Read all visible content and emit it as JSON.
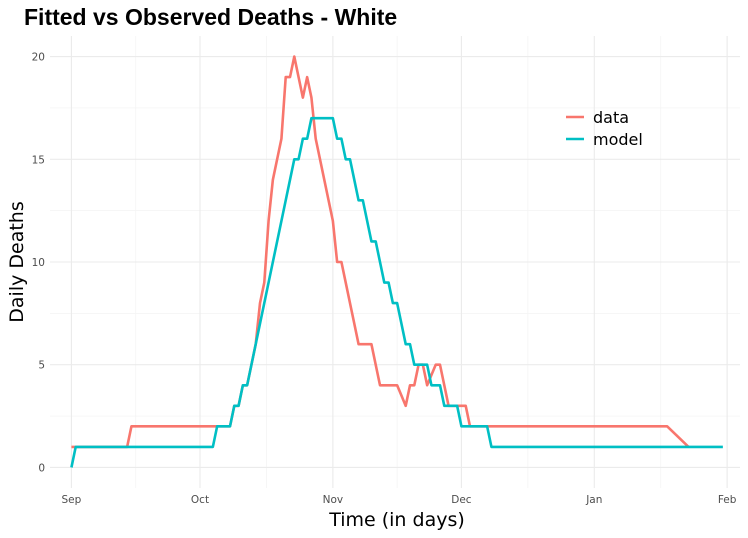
{
  "chart_data": {
    "type": "line",
    "title": "Fitted vs Observed Deaths - White",
    "xlabel": "Time (in days)",
    "ylabel": "Daily Deaths",
    "x_tick_labels": [
      "Sep",
      "Oct",
      "Nov",
      "Dec",
      "Jan",
      "Feb"
    ],
    "y_ticks": [
      0,
      5,
      10,
      15,
      20
    ],
    "ylim": [
      -1,
      21
    ],
    "xlim": [
      "2020-08-27",
      "2021-02-04"
    ],
    "grid": true,
    "legend_position": "top-right",
    "series": [
      {
        "name": "data",
        "color": "#F8766D",
        "x": [
          "2020-09-01",
          "2020-09-14",
          "2020-09-15",
          "2020-10-06",
          "2020-10-08",
          "2020-10-09",
          "2020-10-10",
          "2020-10-11",
          "2020-10-12",
          "2020-10-13",
          "2020-10-14",
          "2020-10-15",
          "2020-10-16",
          "2020-10-17",
          "2020-10-18",
          "2020-10-19",
          "2020-10-20",
          "2020-10-21",
          "2020-10-22",
          "2020-10-23",
          "2020-10-24",
          "2020-10-25",
          "2020-10-26",
          "2020-10-27",
          "2020-10-28",
          "2020-10-29",
          "2020-10-30",
          "2020-10-31",
          "2020-11-01",
          "2020-11-02",
          "2020-11-03",
          "2020-11-04",
          "2020-11-05",
          "2020-11-06",
          "2020-11-07",
          "2020-11-08",
          "2020-11-09",
          "2020-11-10",
          "2020-11-11",
          "2020-11-12",
          "2020-11-13",
          "2020-11-14",
          "2020-11-15",
          "2020-11-16",
          "2020-11-17",
          "2020-11-18",
          "2020-11-19",
          "2020-11-20",
          "2020-11-21",
          "2020-11-22",
          "2020-11-23",
          "2020-11-24",
          "2020-11-25",
          "2020-11-26",
          "2020-11-27",
          "2020-11-28",
          "2020-11-29",
          "2020-11-30",
          "2020-12-01",
          "2020-12-02",
          "2020-12-03",
          "2020-12-04",
          "2021-01-18",
          "2021-01-23"
        ],
        "y": [
          1,
          1,
          2,
          2,
          2,
          3,
          3,
          4,
          4,
          5,
          6,
          8,
          9,
          12,
          14,
          15,
          16,
          19,
          19,
          20,
          19,
          18,
          19,
          18,
          16,
          15,
          14,
          13,
          12,
          10,
          10,
          9,
          8,
          7,
          6,
          6,
          6,
          6,
          5,
          4,
          4,
          4,
          4,
          4,
          3.5,
          3,
          4,
          4,
          5,
          5,
          4,
          4.5,
          5,
          5,
          4,
          3,
          3,
          3,
          3,
          3,
          2,
          2,
          2,
          1
        ]
      },
      {
        "name": "model",
        "color": "#00BFC4",
        "x": [
          "2020-09-01",
          "2020-09-02",
          "2020-10-04",
          "2020-10-05",
          "2020-10-07",
          "2020-10-08",
          "2020-10-09",
          "2020-10-10",
          "2020-10-11",
          "2020-10-12",
          "2020-10-21",
          "2020-10-22",
          "2020-10-23",
          "2020-10-24",
          "2020-10-25",
          "2020-10-26",
          "2020-10-27",
          "2020-10-28",
          "2020-10-29",
          "2020-10-30",
          "2020-10-31",
          "2020-11-01",
          "2020-11-02",
          "2020-11-03",
          "2020-11-04",
          "2020-11-05",
          "2020-11-06",
          "2020-11-07",
          "2020-11-08",
          "2020-11-09",
          "2020-11-10",
          "2020-11-11",
          "2020-11-12",
          "2020-11-13",
          "2020-11-14",
          "2020-11-15",
          "2020-11-16",
          "2020-11-17",
          "2020-11-18",
          "2020-11-19",
          "2020-11-20",
          "2020-11-21",
          "2020-11-22",
          "2020-11-23",
          "2020-11-24",
          "2020-11-25",
          "2020-11-26",
          "2020-11-27",
          "2020-11-28",
          "2020-11-29",
          "2020-11-30",
          "2020-12-01",
          "2020-12-02",
          "2020-12-03",
          "2020-12-04",
          "2020-12-05",
          "2020-12-06",
          "2020-12-07",
          "2020-12-08",
          "2021-01-31"
        ],
        "y": [
          0,
          1,
          1,
          2,
          2,
          2,
          3,
          3,
          4,
          4,
          13,
          14,
          15,
          15,
          16,
          16,
          17,
          17,
          17,
          17,
          17,
          17,
          16,
          16,
          15,
          15,
          14,
          13,
          13,
          12,
          11,
          11,
          10,
          9,
          9,
          8,
          8,
          7,
          6,
          6,
          5,
          5,
          5,
          5,
          4,
          4,
          4,
          3,
          3,
          3,
          3,
          2,
          2,
          2,
          2,
          2,
          2,
          2,
          1,
          1
        ]
      }
    ]
  }
}
